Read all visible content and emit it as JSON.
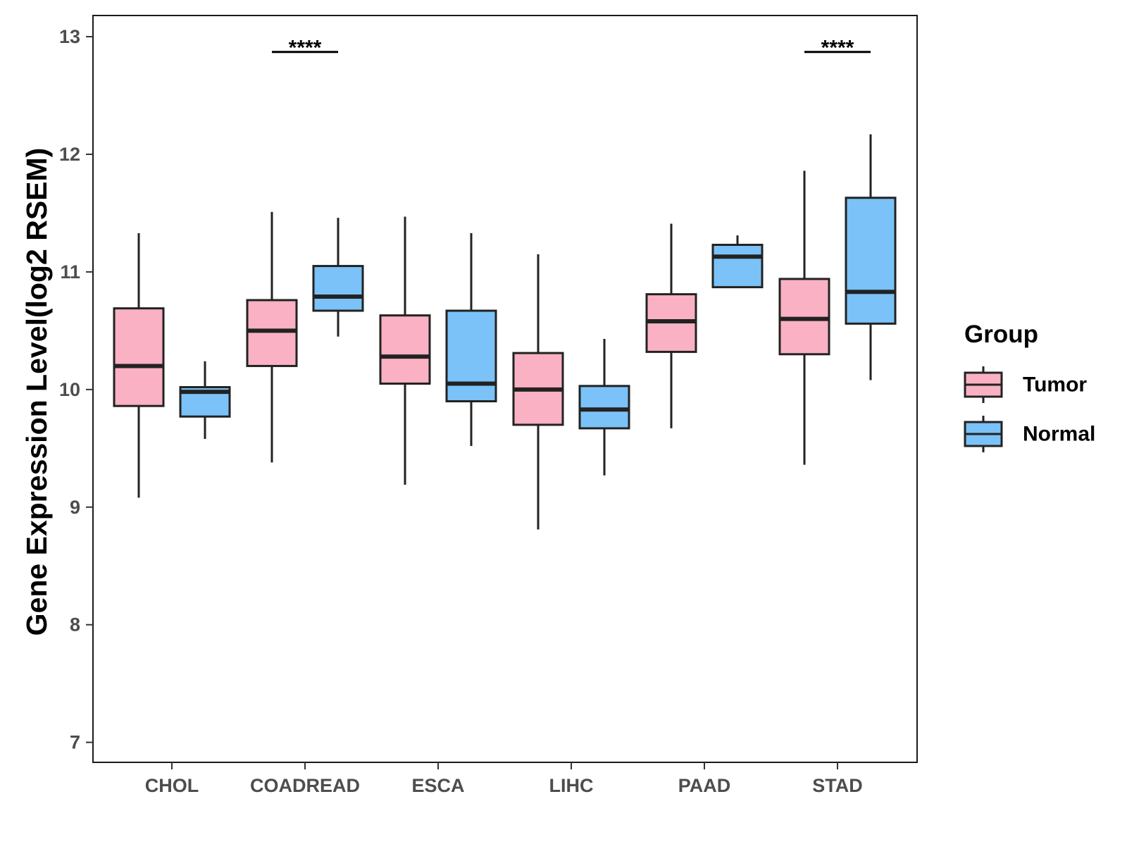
{
  "chart_data": {
    "type": "boxplot",
    "title": "",
    "xlabel": "",
    "ylabel": "Gene Expression Level(log2 RSEM)",
    "ylim": [
      6.83,
      13.18
    ],
    "yticks": [
      7,
      8,
      9,
      10,
      11,
      12,
      13
    ],
    "grid": false,
    "legend_position": "right",
    "categories": [
      "CHOL",
      "COADREAD",
      "ESCA",
      "LIHC",
      "PAAD",
      "STAD"
    ],
    "groups": [
      {
        "name": "Tumor",
        "color": "#f9b1c3"
      },
      {
        "name": "Normal",
        "color": "#7ac2f7"
      }
    ],
    "boxes": [
      {
        "category": "CHOL",
        "group": "Tumor",
        "min": 9.08,
        "q1": 9.86,
        "median": 10.2,
        "q3": 10.69,
        "max": 11.33
      },
      {
        "category": "CHOL",
        "group": "Normal",
        "min": 9.58,
        "q1": 9.77,
        "median": 9.98,
        "q3": 10.02,
        "max": 10.24
      },
      {
        "category": "COADREAD",
        "group": "Tumor",
        "min": 9.38,
        "q1": 10.2,
        "median": 10.5,
        "q3": 10.76,
        "max": 11.51
      },
      {
        "category": "COADREAD",
        "group": "Normal",
        "min": 10.45,
        "q1": 10.67,
        "median": 10.79,
        "q3": 11.05,
        "max": 11.46
      },
      {
        "category": "ESCA",
        "group": "Tumor",
        "min": 9.19,
        "q1": 10.05,
        "median": 10.28,
        "q3": 10.63,
        "max": 11.47
      },
      {
        "category": "ESCA",
        "group": "Normal",
        "min": 9.52,
        "q1": 9.9,
        "median": 10.05,
        "q3": 10.67,
        "max": 11.33
      },
      {
        "category": "LIHC",
        "group": "Tumor",
        "min": 8.81,
        "q1": 9.7,
        "median": 10.0,
        "q3": 10.31,
        "max": 11.15
      },
      {
        "category": "LIHC",
        "group": "Normal",
        "min": 9.27,
        "q1": 9.67,
        "median": 9.83,
        "q3": 10.03,
        "max": 10.43
      },
      {
        "category": "PAAD",
        "group": "Tumor",
        "min": 9.67,
        "q1": 10.32,
        "median": 10.58,
        "q3": 10.81,
        "max": 11.41
      },
      {
        "category": "PAAD",
        "group": "Normal",
        "min": 10.87,
        "q1": 10.87,
        "median": 11.13,
        "q3": 11.23,
        "max": 11.31
      },
      {
        "category": "STAD",
        "group": "Tumor",
        "min": 9.36,
        "q1": 10.3,
        "median": 10.6,
        "q3": 10.94,
        "max": 11.86
      },
      {
        "category": "STAD",
        "group": "Normal",
        "min": 10.08,
        "q1": 10.56,
        "median": 10.83,
        "q3": 11.63,
        "max": 12.17
      }
    ],
    "annotations": [
      {
        "category": "COADREAD",
        "text": "****",
        "y": 12.87
      },
      {
        "category": "STAD",
        "text": "****",
        "y": 12.87
      }
    ]
  },
  "legend": {
    "title": "Group",
    "items": [
      "Tumor",
      "Normal"
    ]
  }
}
